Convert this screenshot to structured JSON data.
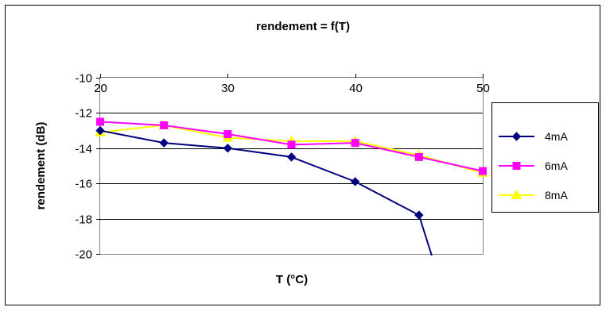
{
  "chart_data": {
    "type": "line",
    "title": "rendement = f(T)",
    "xlabel": "T (°C)",
    "ylabel": "rendement (dB)",
    "xlim": [
      20,
      50
    ],
    "ylim": [
      -20,
      -10
    ],
    "x_ticks": [
      20,
      30,
      40,
      50
    ],
    "y_ticks": [
      -10,
      -12,
      -14,
      -16,
      -18,
      -20
    ],
    "grid": "horizontal",
    "x_axis_position": "top",
    "legend": "right",
    "series": [
      {
        "name": "4mA",
        "color": "#000080",
        "marker": "diamond",
        "x": [
          20,
          25,
          30,
          35,
          40,
          45,
          46
        ],
        "y": [
          -13.0,
          -13.7,
          -14.0,
          -14.5,
          -15.9,
          -17.8,
          -20.4
        ],
        "marked": [
          true,
          true,
          true,
          true,
          true,
          true,
          false
        ]
      },
      {
        "name": "6mA",
        "color": "#ff00ff",
        "marker": "square",
        "x": [
          20,
          25,
          30,
          35,
          40,
          45,
          50
        ],
        "y": [
          -12.5,
          -12.7,
          -13.2,
          -13.8,
          -13.7,
          -14.5,
          -15.3
        ],
        "marked": [
          true,
          true,
          true,
          true,
          true,
          true,
          true
        ]
      },
      {
        "name": "8mA",
        "color": "#ffff00",
        "marker": "triangle",
        "x": [
          20,
          25,
          30,
          35,
          40,
          45,
          50
        ],
        "y": [
          -13.1,
          -12.7,
          -13.4,
          -13.6,
          -13.6,
          -14.4,
          -15.4
        ],
        "marked": [
          true,
          true,
          true,
          true,
          true,
          true,
          true
        ]
      }
    ]
  }
}
